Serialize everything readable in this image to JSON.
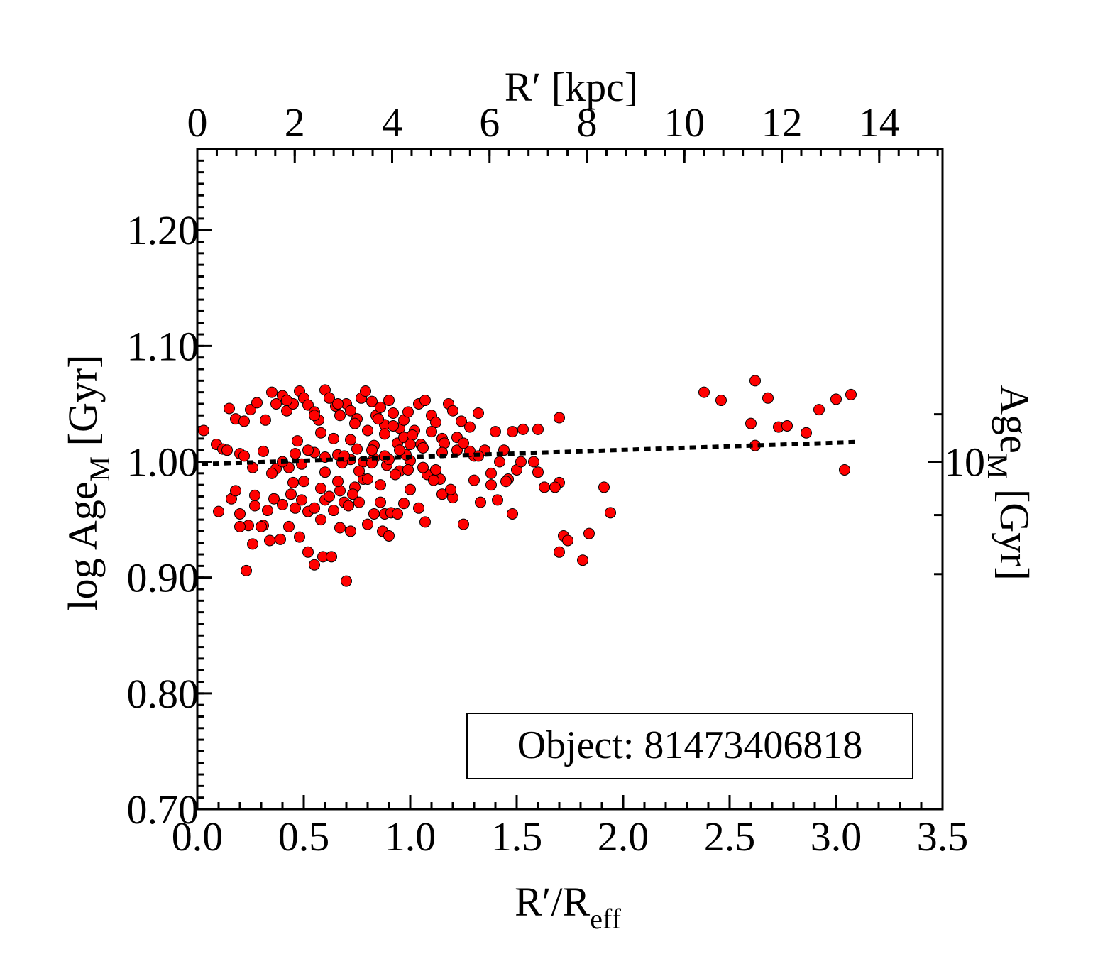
{
  "chart_data": {
    "type": "scatter",
    "annotation": "Object: 81473406818",
    "xlabel": "R′/R",
    "xlabel_sub": "eff",
    "ylabel": "log Age",
    "ylabel_sub": "M",
    "ylabel_unit": "[Gyr]",
    "x2label": "R′ [kpc]",
    "y2label": "Age",
    "y2label_sub": "M",
    "y2label_unit": "[Gyr]",
    "xlim": [
      0.0,
      3.5
    ],
    "ylim": [
      0.7,
      1.27
    ],
    "x2lim": [
      0,
      15.3
    ],
    "x_ticks": [
      "0.0",
      "0.5",
      "1.0",
      "1.5",
      "2.0",
      "2.5",
      "3.0",
      "3.5"
    ],
    "x_tick_values": [
      0.0,
      0.5,
      1.0,
      1.5,
      2.0,
      2.5,
      3.0,
      3.5
    ],
    "y_ticks": [
      "0.70",
      "0.80",
      "0.90",
      "1.00",
      "1.10",
      "1.20"
    ],
    "y_tick_values": [
      0.7,
      0.8,
      0.9,
      1.0,
      1.1,
      1.2
    ],
    "x2_ticks": [
      "0",
      "2",
      "4",
      "6",
      "8",
      "10",
      "12",
      "14"
    ],
    "x2_tick_values": [
      0,
      2,
      4,
      6,
      8,
      10,
      12,
      14
    ],
    "y2_ticks": [
      "10"
    ],
    "y2_tick_values": [
      1.0
    ],
    "y2_minor_ticks_log": [
      0.903,
      0.954,
      1.041
    ],
    "marker_color": "#ff0000",
    "fit_color": "#000000",
    "fit_line": {
      "x": [
        0.02,
        3.09
      ],
      "y": [
        0.998,
        1.017
      ]
    },
    "points": [
      [
        0.03,
        1.027
      ],
      [
        0.09,
        1.015
      ],
      [
        0.12,
        1.011
      ],
      [
        0.14,
        1.01
      ],
      [
        0.2,
        1.007
      ],
      [
        0.22,
        1.005
      ],
      [
        0.26,
        0.995
      ],
      [
        0.31,
        1.009
      ],
      [
        0.37,
        0.994
      ],
      [
        0.43,
        0.995
      ],
      [
        0.49,
        0.998
      ],
      [
        0.55,
        1.008
      ],
      [
        0.6,
        1.004
      ],
      [
        0.66,
        1.006
      ],
      [
        0.72,
        1.002
      ],
      [
        0.78,
        1.0
      ],
      [
        0.83,
        1.003
      ],
      [
        0.89,
        0.997
      ],
      [
        0.95,
        0.992
      ],
      [
        1.0,
        1.001
      ],
      [
        1.08,
        0.989
      ],
      [
        1.14,
        0.985
      ],
      [
        1.22,
        1.01
      ],
      [
        1.3,
        1.005
      ],
      [
        1.38,
        0.99
      ],
      [
        1.46,
        0.985
      ],
      [
        1.58,
        1.0
      ],
      [
        1.7,
        0.982
      ],
      [
        0.15,
        1.046
      ],
      [
        0.18,
        1.037
      ],
      [
        0.22,
        1.035
      ],
      [
        0.25,
        1.045
      ],
      [
        0.28,
        1.051
      ],
      [
        0.32,
        1.036
      ],
      [
        0.35,
        1.06
      ],
      [
        0.37,
        1.05
      ],
      [
        0.4,
        1.057
      ],
      [
        0.42,
        1.044
      ],
      [
        0.45,
        1.05
      ],
      [
        0.48,
        1.061
      ],
      [
        0.5,
        1.055
      ],
      [
        0.52,
        1.049
      ],
      [
        0.55,
        1.043
      ],
      [
        0.57,
        1.036
      ],
      [
        0.6,
        1.062
      ],
      [
        0.62,
        1.055
      ],
      [
        0.65,
        1.048
      ],
      [
        0.67,
        1.04
      ],
      [
        0.7,
        1.05
      ],
      [
        0.72,
        1.044
      ],
      [
        0.75,
        1.037
      ],
      [
        0.77,
        1.055
      ],
      [
        0.79,
        1.061
      ],
      [
        0.82,
        1.052
      ],
      [
        0.84,
        1.04
      ],
      [
        0.86,
        1.047
      ],
      [
        0.88,
        1.032
      ],
      [
        0.9,
        1.053
      ],
      [
        0.92,
        1.042
      ],
      [
        0.95,
        1.029
      ],
      [
        0.97,
        1.036
      ],
      [
        0.99,
        1.043
      ],
      [
        1.02,
        1.027
      ],
      [
        1.04,
        1.05
      ],
      [
        1.07,
        1.053
      ],
      [
        1.1,
        1.04
      ],
      [
        1.12,
        1.034
      ],
      [
        1.15,
        1.02
      ],
      [
        1.18,
        1.05
      ],
      [
        1.2,
        1.044
      ],
      [
        1.24,
        1.035
      ],
      [
        1.28,
        1.03
      ],
      [
        1.32,
        1.042
      ],
      [
        1.4,
        1.026
      ],
      [
        1.48,
        1.026
      ],
      [
        1.53,
        1.028
      ],
      [
        1.6,
        1.028
      ],
      [
        1.7,
        1.038
      ],
      [
        0.16,
        0.968
      ],
      [
        0.2,
        0.955
      ],
      [
        0.24,
        0.945
      ],
      [
        0.27,
        0.962
      ],
      [
        0.31,
        0.945
      ],
      [
        0.33,
        0.958
      ],
      [
        0.36,
        0.968
      ],
      [
        0.4,
        0.963
      ],
      [
        0.44,
        0.972
      ],
      [
        0.46,
        0.96
      ],
      [
        0.49,
        0.967
      ],
      [
        0.52,
        0.957
      ],
      [
        0.55,
        0.96
      ],
      [
        0.58,
        0.95
      ],
      [
        0.6,
        0.967
      ],
      [
        0.62,
        0.97
      ],
      [
        0.64,
        0.958
      ],
      [
        0.67,
        0.975
      ],
      [
        0.69,
        0.965
      ],
      [
        0.71,
        0.962
      ],
      [
        0.74,
        0.978
      ],
      [
        0.76,
        0.965
      ],
      [
        0.78,
        0.985
      ],
      [
        0.8,
        0.946
      ],
      [
        0.83,
        0.955
      ],
      [
        0.86,
        0.965
      ],
      [
        0.88,
        0.955
      ],
      [
        0.91,
        0.956
      ],
      [
        0.94,
        0.955
      ],
      [
        0.97,
        0.964
      ],
      [
        1.0,
        0.976
      ],
      [
        1.04,
        0.96
      ],
      [
        1.07,
        0.948
      ],
      [
        1.11,
        0.984
      ],
      [
        1.15,
        0.972
      ],
      [
        1.2,
        0.969
      ],
      [
        1.25,
        0.946
      ],
      [
        1.33,
        0.965
      ],
      [
        1.41,
        0.967
      ],
      [
        1.48,
        0.955
      ],
      [
        1.63,
        0.978
      ],
      [
        1.68,
        0.978
      ],
      [
        0.2,
        0.944
      ],
      [
        0.23,
        0.906
      ],
      [
        0.26,
        0.929
      ],
      [
        0.3,
        0.944
      ],
      [
        0.34,
        0.932
      ],
      [
        0.39,
        0.933
      ],
      [
        0.43,
        0.944
      ],
      [
        0.48,
        0.935
      ],
      [
        0.52,
        0.922
      ],
      [
        0.55,
        0.911
      ],
      [
        0.59,
        0.918
      ],
      [
        0.63,
        0.918
      ],
      [
        0.67,
        0.943
      ],
      [
        0.7,
        0.897
      ],
      [
        0.72,
        0.94
      ],
      [
        0.87,
        0.94
      ],
      [
        0.9,
        0.936
      ],
      [
        1.7,
        0.922
      ],
      [
        1.72,
        0.936
      ],
      [
        1.74,
        0.932
      ],
      [
        1.81,
        0.915
      ],
      [
        1.84,
        0.938
      ],
      [
        1.91,
        0.978
      ],
      [
        1.94,
        0.956
      ],
      [
        0.42,
        1.053
      ],
      [
        0.55,
        1.04
      ],
      [
        0.66,
        1.05
      ],
      [
        0.72,
        1.019
      ],
      [
        0.74,
        1.033
      ],
      [
        0.8,
        1.027
      ],
      [
        0.83,
        1.014
      ],
      [
        0.85,
        1.037
      ],
      [
        0.88,
        1.024
      ],
      [
        0.92,
        1.031
      ],
      [
        0.94,
        1.016
      ],
      [
        0.97,
        1.021
      ],
      [
        1.01,
        1.023
      ],
      [
        1.05,
        1.015
      ],
      [
        1.1,
        1.026
      ],
      [
        1.16,
        1.016
      ],
      [
        1.22,
        1.021
      ],
      [
        1.28,
        1.009
      ],
      [
        1.35,
        1.01
      ],
      [
        1.42,
        1.0
      ],
      [
        1.5,
        0.993
      ],
      [
        1.6,
        0.991
      ],
      [
        0.5,
        0.983
      ],
      [
        0.58,
        0.977
      ],
      [
        0.66,
        0.983
      ],
      [
        0.73,
        0.972
      ],
      [
        0.8,
        0.985
      ],
      [
        0.86,
        0.98
      ],
      [
        0.93,
        0.989
      ],
      [
        0.99,
        0.993
      ],
      [
        1.06,
        0.995
      ],
      [
        1.12,
        0.993
      ],
      [
        1.19,
        0.976
      ],
      [
        1.3,
        0.984
      ],
      [
        1.38,
        0.98
      ],
      [
        1.45,
        0.983
      ],
      [
        0.1,
        0.957
      ],
      [
        0.18,
        0.975
      ],
      [
        0.27,
        0.971
      ],
      [
        0.35,
        0.99
      ],
      [
        0.45,
        0.982
      ],
      [
        0.6,
        0.991
      ],
      [
        0.68,
        0.999
      ],
      [
        0.76,
        0.992
      ],
      [
        0.82,
        0.999
      ],
      [
        0.9,
        1.002
      ],
      [
        0.98,
        1.006
      ],
      [
        1.06,
        1.012
      ],
      [
        1.15,
        1.008
      ],
      [
        1.25,
        1.016
      ],
      [
        1.32,
        1.005
      ],
      [
        1.44,
        1.01
      ],
      [
        1.52,
        1.0
      ],
      [
        2.38,
        1.06
      ],
      [
        2.46,
        1.053
      ],
      [
        2.6,
        1.033
      ],
      [
        2.62,
        1.07
      ],
      [
        2.68,
        1.055
      ],
      [
        2.73,
        1.03
      ],
      [
        2.77,
        1.031
      ],
      [
        2.86,
        1.025
      ],
      [
        2.92,
        1.045
      ],
      [
        3.0,
        1.054
      ],
      [
        3.07,
        1.058
      ],
      [
        2.62,
        1.014
      ],
      [
        3.04,
        0.993
      ],
      [
        0.47,
        1.018
      ],
      [
        0.52,
        1.01
      ],
      [
        0.58,
        1.025
      ],
      [
        0.64,
        1.02
      ],
      [
        0.69,
        1.005
      ],
      [
        0.75,
        1.011
      ],
      [
        0.82,
        1.01
      ],
      [
        0.88,
        1.005
      ],
      [
        0.95,
        1.01
      ],
      [
        1.0,
        1.015
      ],
      [
        0.4,
        1.0
      ],
      [
        0.46,
        1.007
      ]
    ]
  }
}
